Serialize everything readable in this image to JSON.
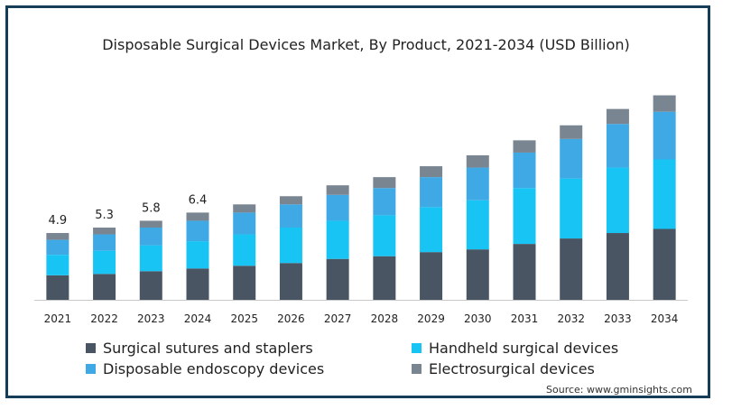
{
  "chart_data": {
    "type": "bar",
    "stacked": true,
    "title": "Disposable Surgical Devices Market, By Product, 2021-2034 (USD Billion)",
    "categories": [
      "2021",
      "2022",
      "2023",
      "2024",
      "2025",
      "2026",
      "2027",
      "2028",
      "2029",
      "2030",
      "2031",
      "2032",
      "2033",
      "2034"
    ],
    "series": [
      {
        "name": "Surgical sutures and staplers",
        "color": "#4a5563",
        "values": [
          1.8,
          1.9,
          2.1,
          2.3,
          2.5,
          2.7,
          3.0,
          3.2,
          3.5,
          3.7,
          4.1,
          4.5,
          4.9,
          5.2
        ]
      },
      {
        "name": "Handheld surgical devices",
        "color": "#17c4f4",
        "values": [
          1.5,
          1.7,
          1.9,
          2.0,
          2.3,
          2.6,
          2.8,
          3.0,
          3.3,
          3.6,
          4.1,
          4.4,
          4.8,
          5.1
        ]
      },
      {
        "name": "Disposable endoscopy devices",
        "color": "#3fa9e6",
        "values": [
          1.1,
          1.2,
          1.3,
          1.5,
          1.6,
          1.7,
          1.9,
          2.0,
          2.2,
          2.4,
          2.6,
          2.9,
          3.2,
          3.5
        ]
      },
      {
        "name": "Electrosurgical devices",
        "color": "#7a8592",
        "values": [
          0.5,
          0.5,
          0.5,
          0.6,
          0.6,
          0.6,
          0.7,
          0.8,
          0.8,
          0.9,
          0.9,
          1.0,
          1.1,
          1.2
        ]
      }
    ],
    "data_labels": [
      "4.9",
      "5.3",
      "5.8",
      "6.4"
    ],
    "xlabel": "",
    "ylabel": "",
    "ylim": [
      0,
      15.5
    ],
    "grid": false,
    "legend": "bottom"
  },
  "source": "Source: www.gminsights.com"
}
